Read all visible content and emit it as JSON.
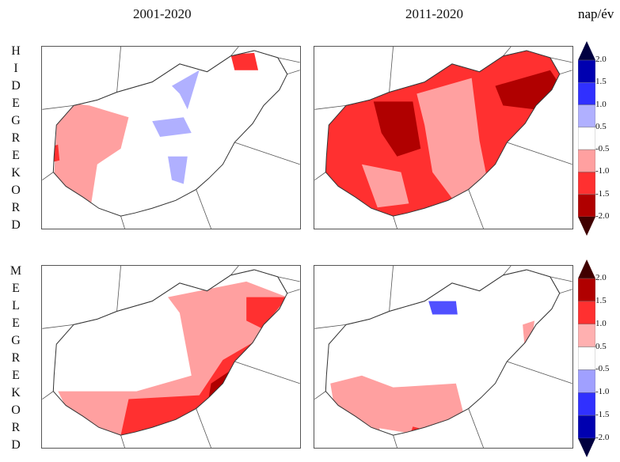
{
  "columns": [
    "2001-2020",
    "2011-2020"
  ],
  "unit": "nap/év",
  "rows": [
    {
      "label": "HIDEGREKORD",
      "letters": [
        "H",
        "I",
        "D",
        "E",
        "G",
        "R",
        "E",
        "K",
        "O",
        "R",
        "D"
      ]
    },
    {
      "label": "MELEGREKORD",
      "letters": [
        "M",
        "E",
        "L",
        "E",
        "G",
        "R",
        "E",
        "K",
        "O",
        "R",
        "D"
      ]
    }
  ],
  "colorbars": [
    {
      "labels": [
        "2.0",
        "1.5",
        "1.0",
        "0.5",
        "-0.5",
        "-1.0",
        "-1.5",
        "-2.0"
      ],
      "colors": [
        "#000040",
        "#0000b0",
        "#3030ff",
        "#b0b0ff",
        "#ffffff",
        "#ffa0a0",
        "#ff3030",
        "#b00000",
        "#400000"
      ]
    },
    {
      "labels": [
        "2.0",
        "1.5",
        "1.0",
        "0.5",
        "-0.5",
        "-1.0",
        "-1.5",
        "-2.0"
      ],
      "colors": [
        "#400000",
        "#b00000",
        "#ff3030",
        "#ffb0b0",
        "#ffffff",
        "#a0a0ff",
        "#3030ff",
        "#0000b0",
        "#000040"
      ]
    }
  ],
  "panels": [
    {
      "row": "HIDEGREKORD",
      "period": "2001-2020",
      "pattern": "west-pink-center-blue"
    },
    {
      "row": "HIDEGREKORD",
      "period": "2011-2020",
      "pattern": "widespread-red"
    },
    {
      "row": "MELEGREKORD",
      "period": "2001-2020",
      "pattern": "east-south-red"
    },
    {
      "row": "MELEGREKORD",
      "period": "2011-2020",
      "pattern": "southwest-pink-north-blue"
    }
  ]
}
